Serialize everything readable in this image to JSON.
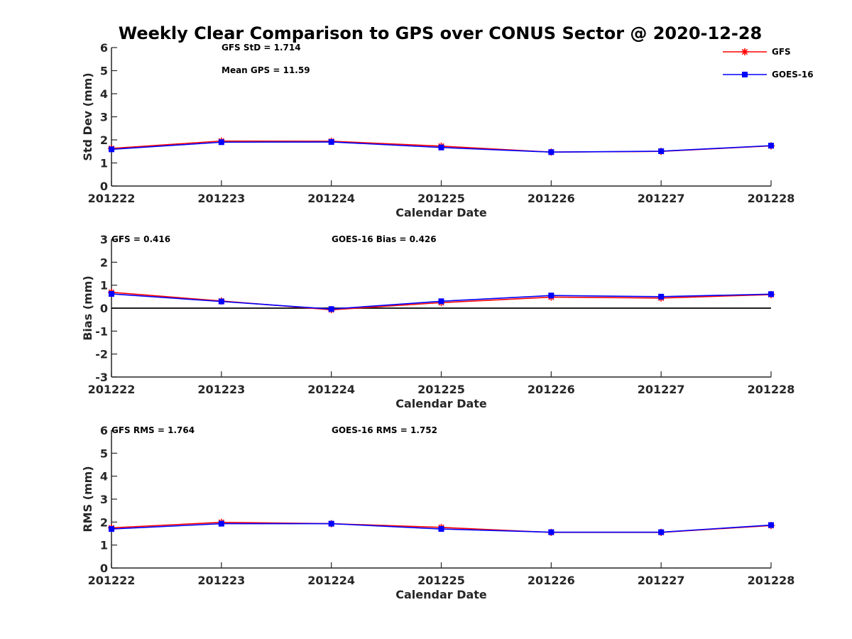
{
  "title": "Weekly Clear Comparison to GPS over CONUS Sector @ 2020-12-28",
  "colors": {
    "gfs": "#ff0000",
    "goes": "#0000ff",
    "axis": "#262626",
    "zero_line": "#000000"
  },
  "legend": {
    "placement": "top-right",
    "entries": [
      "GFS",
      "GOES-16"
    ]
  },
  "chart_data": [
    {
      "type": "line",
      "id": "stddev",
      "categories": [
        "201222",
        "201223",
        "201224",
        "201225",
        "201226",
        "201227",
        "201228"
      ],
      "xlabel": "Calendar Date",
      "ylabel": "Std Dev (mm)",
      "ylim": [
        0,
        6
      ],
      "yticks": [
        0,
        1,
        2,
        3,
        4,
        5,
        6
      ],
      "grid": false,
      "annotations": [
        "GFS StD = 1.714",
        "Mean GPS = 11.59"
      ],
      "series": [
        {
          "name": "GFS",
          "marker": "asterisk",
          "values": [
            1.63,
            1.95,
            1.94,
            1.73,
            1.47,
            1.5,
            1.74
          ]
        },
        {
          "name": "GOES-16",
          "marker": "square",
          "values": [
            1.59,
            1.9,
            1.91,
            1.67,
            1.47,
            1.51,
            1.75
          ]
        }
      ]
    },
    {
      "type": "line",
      "id": "bias",
      "categories": [
        "201222",
        "201223",
        "201224",
        "201225",
        "201226",
        "201227",
        "201228"
      ],
      "xlabel": "Calendar Date",
      "ylabel": "Bias (mm)",
      "ylim": [
        -3,
        3
      ],
      "yticks": [
        -3,
        -2,
        -1,
        0,
        1,
        2,
        3
      ],
      "grid": false,
      "zero_line": true,
      "annotations": [
        "GFS = 0.416",
        "GOES-16 Bias  = 0.426"
      ],
      "series": [
        {
          "name": "GFS",
          "marker": "asterisk",
          "values": [
            0.69,
            0.31,
            -0.07,
            0.24,
            0.48,
            0.44,
            0.59
          ]
        },
        {
          "name": "GOES-16",
          "marker": "square",
          "values": [
            0.62,
            0.29,
            -0.04,
            0.3,
            0.55,
            0.5,
            0.61
          ]
        }
      ]
    },
    {
      "type": "line",
      "id": "rms",
      "categories": [
        "201222",
        "201223",
        "201224",
        "201225",
        "201226",
        "201227",
        "201228"
      ],
      "xlabel": "Calendar Date",
      "ylabel": "RMS (mm)",
      "ylim": [
        0,
        6
      ],
      "yticks": [
        0,
        1,
        2,
        3,
        4,
        5,
        6
      ],
      "grid": false,
      "annotations": [
        "GFS RMS = 1.764",
        "GOES-16 RMS = 1.752"
      ],
      "series": [
        {
          "name": "GFS",
          "marker": "asterisk",
          "values": [
            1.75,
            1.99,
            1.93,
            1.77,
            1.55,
            1.55,
            1.85
          ]
        },
        {
          "name": "GOES-16",
          "marker": "square",
          "values": [
            1.7,
            1.93,
            1.93,
            1.7,
            1.56,
            1.56,
            1.87
          ]
        }
      ]
    }
  ]
}
